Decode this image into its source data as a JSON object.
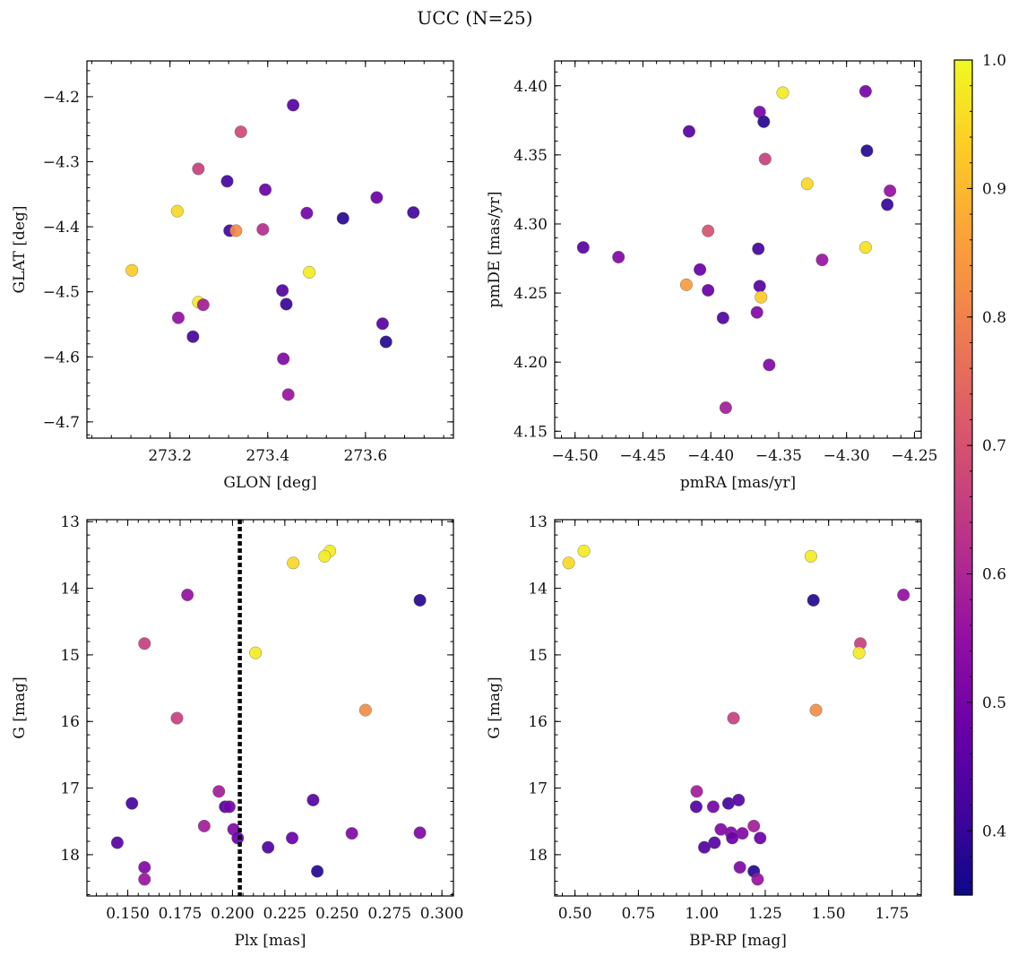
{
  "figure_title": "UCC (N=25)",
  "chart_data": [
    {
      "id": "glon-glat",
      "type": "scatter",
      "xlabel": "GLON [deg]",
      "ylabel": "GLAT [deg]",
      "xlim": [
        273.03,
        273.78
      ],
      "ylim": [
        -4.725,
        -4.145
      ],
      "y_inverted": false,
      "xticks": [
        273.2,
        273.4,
        273.6
      ],
      "xtick_labels": [
        "273.2",
        "273.4",
        "273.6"
      ],
      "yticks": [
        -4.7,
        -4.6,
        -4.5,
        -4.4,
        -4.3,
        -4.2
      ],
      "ytick_labels": [
        "−4.7",
        "−4.6",
        "−4.5",
        "−4.4",
        "−4.3",
        "−4.2"
      ],
      "points": [
        {
          "x": 273.452,
          "y": -4.213,
          "c": 0.45
        },
        {
          "x": 273.345,
          "y": -4.254,
          "c": 0.68
        },
        {
          "x": 273.258,
          "y": -4.311,
          "c": 0.66
        },
        {
          "x": 273.317,
          "y": -4.33,
          "c": 0.42
        },
        {
          "x": 273.395,
          "y": -4.343,
          "c": 0.48
        },
        {
          "x": 273.623,
          "y": -4.355,
          "c": 0.48
        },
        {
          "x": 273.215,
          "y": -4.376,
          "c": 0.95
        },
        {
          "x": 273.48,
          "y": -4.379,
          "c": 0.5
        },
        {
          "x": 273.698,
          "y": -4.378,
          "c": 0.42
        },
        {
          "x": 273.554,
          "y": -4.387,
          "c": 0.38
        },
        {
          "x": 273.322,
          "y": -4.406,
          "c": 0.42
        },
        {
          "x": 273.335,
          "y": -4.406,
          "c": 0.82
        },
        {
          "x": 273.39,
          "y": -4.404,
          "c": 0.62
        },
        {
          "x": 273.122,
          "y": -4.467,
          "c": 0.93
        },
        {
          "x": 273.485,
          "y": -4.47,
          "c": 0.98
        },
        {
          "x": 273.43,
          "y": -4.498,
          "c": 0.44
        },
        {
          "x": 273.258,
          "y": -4.516,
          "c": 0.98
        },
        {
          "x": 273.268,
          "y": -4.52,
          "c": 0.58
        },
        {
          "x": 273.438,
          "y": -4.519,
          "c": 0.4
        },
        {
          "x": 273.217,
          "y": -4.54,
          "c": 0.55
        },
        {
          "x": 273.635,
          "y": -4.549,
          "c": 0.45
        },
        {
          "x": 273.247,
          "y": -4.569,
          "c": 0.42
        },
        {
          "x": 273.642,
          "y": -4.577,
          "c": 0.38
        },
        {
          "x": 273.432,
          "y": -4.603,
          "c": 0.52
        },
        {
          "x": 273.442,
          "y": -4.658,
          "c": 0.56
        }
      ]
    },
    {
      "id": "pmra-pmde",
      "type": "scatter",
      "xlabel": "pmRA [mas/yr]",
      "ylabel": "pmDE [mas/yr]",
      "xlim": [
        -4.515,
        -4.245
      ],
      "ylim": [
        4.145,
        4.418
      ],
      "y_inverted": false,
      "xticks": [
        -4.5,
        -4.45,
        -4.4,
        -4.35,
        -4.3,
        -4.25
      ],
      "xtick_labels": [
        "−4.50",
        "−4.45",
        "−4.40",
        "−4.35",
        "−4.30",
        "−4.25"
      ],
      "yticks": [
        4.15,
        4.2,
        4.25,
        4.3,
        4.35,
        4.4
      ],
      "ytick_labels": [
        "4.15",
        "4.20",
        "4.25",
        "4.30",
        "4.35",
        "4.40"
      ],
      "points": [
        {
          "x": -4.347,
          "y": 4.395,
          "c": 0.98
        },
        {
          "x": -4.286,
          "y": 4.396,
          "c": 0.5
        },
        {
          "x": -4.364,
          "y": 4.381,
          "c": 0.5
        },
        {
          "x": -4.361,
          "y": 4.374,
          "c": 0.38
        },
        {
          "x": -4.416,
          "y": 4.367,
          "c": 0.45
        },
        {
          "x": -4.285,
          "y": 4.353,
          "c": 0.38
        },
        {
          "x": -4.36,
          "y": 4.347,
          "c": 0.66
        },
        {
          "x": -4.329,
          "y": 4.329,
          "c": 0.95
        },
        {
          "x": -4.268,
          "y": 4.324,
          "c": 0.55
        },
        {
          "x": -4.27,
          "y": 4.314,
          "c": 0.4
        },
        {
          "x": -4.402,
          "y": 4.295,
          "c": 0.7
        },
        {
          "x": -4.494,
          "y": 4.283,
          "c": 0.45
        },
        {
          "x": -4.365,
          "y": 4.282,
          "c": 0.42
        },
        {
          "x": -4.286,
          "y": 4.283,
          "c": 0.96
        },
        {
          "x": -4.468,
          "y": 4.276,
          "c": 0.52
        },
        {
          "x": -4.318,
          "y": 4.274,
          "c": 0.56
        },
        {
          "x": -4.408,
          "y": 4.267,
          "c": 0.48
        },
        {
          "x": -4.418,
          "y": 4.256,
          "c": 0.85
        },
        {
          "x": -4.364,
          "y": 4.255,
          "c": 0.45
        },
        {
          "x": -4.402,
          "y": 4.252,
          "c": 0.48
        },
        {
          "x": -4.363,
          "y": 4.247,
          "c": 0.93
        },
        {
          "x": -4.366,
          "y": 4.236,
          "c": 0.52
        },
        {
          "x": -4.391,
          "y": 4.232,
          "c": 0.44
        },
        {
          "x": -4.357,
          "y": 4.198,
          "c": 0.52
        },
        {
          "x": -4.389,
          "y": 4.167,
          "c": 0.58
        }
      ]
    },
    {
      "id": "plx-g",
      "type": "scatter",
      "xlabel": "Plx [mas]",
      "ylabel": "G [mag]",
      "xlim": [
        0.1305,
        0.3055
      ],
      "ylim": [
        12.97,
        18.62
      ],
      "y_inverted": true,
      "vline": 0.2035,
      "xticks": [
        0.15,
        0.175,
        0.2,
        0.225,
        0.25,
        0.275,
        0.3
      ],
      "xtick_labels": [
        "0.150",
        "0.175",
        "0.200",
        "0.225",
        "0.250",
        "0.275",
        "0.300"
      ],
      "yticks": [
        13,
        14,
        15,
        16,
        17,
        18
      ],
      "ytick_labels": [
        "13",
        "14",
        "15",
        "16",
        "17",
        "18"
      ],
      "points": [
        {
          "x": 0.2465,
          "y": 13.44,
          "c": 0.98
        },
        {
          "x": 0.244,
          "y": 13.52,
          "c": 0.98
        },
        {
          "x": 0.229,
          "y": 13.62,
          "c": 0.95
        },
        {
          "x": 0.1785,
          "y": 14.1,
          "c": 0.55
        },
        {
          "x": 0.2895,
          "y": 14.18,
          "c": 0.38
        },
        {
          "x": 0.158,
          "y": 14.83,
          "c": 0.66
        },
        {
          "x": 0.211,
          "y": 14.97,
          "c": 0.98
        },
        {
          "x": 0.2635,
          "y": 15.83,
          "c": 0.82
        },
        {
          "x": 0.1735,
          "y": 15.95,
          "c": 0.66
        },
        {
          "x": 0.1935,
          "y": 17.05,
          "c": 0.58
        },
        {
          "x": 0.2385,
          "y": 17.18,
          "c": 0.45
        },
        {
          "x": 0.152,
          "y": 17.23,
          "c": 0.42
        },
        {
          "x": 0.1965,
          "y": 17.28,
          "c": 0.44
        },
        {
          "x": 0.1985,
          "y": 17.28,
          "c": 0.5
        },
        {
          "x": 0.1865,
          "y": 17.57,
          "c": 0.58
        },
        {
          "x": 0.2005,
          "y": 17.62,
          "c": 0.52
        },
        {
          "x": 0.2895,
          "y": 17.67,
          "c": 0.52
        },
        {
          "x": 0.257,
          "y": 17.68,
          "c": 0.52
        },
        {
          "x": 0.2025,
          "y": 17.75,
          "c": 0.48
        },
        {
          "x": 0.2285,
          "y": 17.75,
          "c": 0.48
        },
        {
          "x": 0.145,
          "y": 17.82,
          "c": 0.45
        },
        {
          "x": 0.217,
          "y": 17.89,
          "c": 0.44
        },
        {
          "x": 0.158,
          "y": 18.19,
          "c": 0.52
        },
        {
          "x": 0.2405,
          "y": 18.25,
          "c": 0.38
        },
        {
          "x": 0.158,
          "y": 18.37,
          "c": 0.56
        }
      ]
    },
    {
      "id": "bprp-g",
      "type": "scatter",
      "xlabel": "BP-RP [mag]",
      "ylabel": "G [mag]",
      "xlim": [
        0.42,
        1.865
      ],
      "ylim": [
        12.97,
        18.62
      ],
      "y_inverted": true,
      "xticks": [
        0.5,
        0.75,
        1.0,
        1.25,
        1.5,
        1.75
      ],
      "xtick_labels": [
        "0.50",
        "0.75",
        "1.00",
        "1.25",
        "1.50",
        "1.75"
      ],
      "yticks": [
        13,
        14,
        15,
        16,
        17,
        18
      ],
      "ytick_labels": [
        "13",
        "14",
        "15",
        "16",
        "17",
        "18"
      ],
      "points": [
        {
          "x": 0.535,
          "y": 13.44,
          "c": 0.98
        },
        {
          "x": 0.475,
          "y": 13.62,
          "c": 0.95
        },
        {
          "x": 1.43,
          "y": 13.52,
          "c": 0.98
        },
        {
          "x": 1.44,
          "y": 14.18,
          "c": 0.38
        },
        {
          "x": 1.795,
          "y": 14.1,
          "c": 0.55
        },
        {
          "x": 1.625,
          "y": 14.83,
          "c": 0.66
        },
        {
          "x": 1.62,
          "y": 14.97,
          "c": 0.98
        },
        {
          "x": 1.45,
          "y": 15.83,
          "c": 0.82
        },
        {
          "x": 1.125,
          "y": 15.95,
          "c": 0.66
        },
        {
          "x": 0.98,
          "y": 17.05,
          "c": 0.58
        },
        {
          "x": 0.978,
          "y": 17.28,
          "c": 0.44
        },
        {
          "x": 1.045,
          "y": 17.28,
          "c": 0.5
        },
        {
          "x": 1.105,
          "y": 17.23,
          "c": 0.42
        },
        {
          "x": 1.145,
          "y": 17.18,
          "c": 0.45
        },
        {
          "x": 1.205,
          "y": 17.57,
          "c": 0.58
        },
        {
          "x": 1.075,
          "y": 17.62,
          "c": 0.52
        },
        {
          "x": 1.115,
          "y": 17.67,
          "c": 0.52
        },
        {
          "x": 1.16,
          "y": 17.68,
          "c": 0.52
        },
        {
          "x": 1.12,
          "y": 17.75,
          "c": 0.48
        },
        {
          "x": 1.23,
          "y": 17.75,
          "c": 0.48
        },
        {
          "x": 1.05,
          "y": 17.82,
          "c": 0.45
        },
        {
          "x": 1.01,
          "y": 17.89,
          "c": 0.44
        },
        {
          "x": 1.15,
          "y": 18.19,
          "c": 0.52
        },
        {
          "x": 1.205,
          "y": 18.25,
          "c": 0.38
        },
        {
          "x": 1.22,
          "y": 18.37,
          "c": 0.56
        }
      ]
    }
  ],
  "colorbar": {
    "cmap": "plasma",
    "vmin": 0.35,
    "vmax": 1.0,
    "ticks": [
      0.4,
      0.5,
      0.6,
      0.7,
      0.8,
      0.9,
      1.0
    ],
    "tick_labels": [
      "0.4",
      "0.5",
      "0.6",
      "0.7",
      "0.8",
      "0.9",
      "1.0"
    ]
  }
}
